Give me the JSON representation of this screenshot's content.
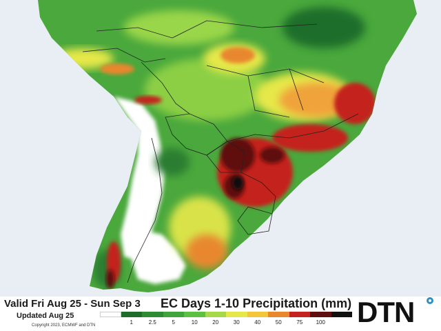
{
  "footer": {
    "valid_text": "Valid Fri Aug 25 - Sun Sep 3",
    "title": "EC Days 1-10 Precipitation (mm)",
    "updated": "Updated Aug 25",
    "copyright": "Copyright 2023, ECMWF and DTN"
  },
  "logo": {
    "text": "DTN"
  },
  "legend": {
    "bins": [
      {
        "label": "",
        "color": "#ffffff"
      },
      {
        "label": "1",
        "color": "#1e6b2a"
      },
      {
        "label": "2.5",
        "color": "#2e8b34"
      },
      {
        "label": "5",
        "color": "#3fa43c"
      },
      {
        "label": "10",
        "color": "#5ec040"
      },
      {
        "label": "20",
        "color": "#a6d94a"
      },
      {
        "label": "30",
        "color": "#e6e84a"
      },
      {
        "label": "40",
        "color": "#f5c63c"
      },
      {
        "label": "50",
        "color": "#e8872e"
      },
      {
        "label": "75",
        "color": "#c4221e"
      },
      {
        "label": "100",
        "color": "#5e0e0e"
      },
      {
        "label": "",
        "color": "#111111"
      }
    ]
  },
  "colors": {
    "ocean": "#e9eef4",
    "dry": "#ffffff",
    "border": "#222222",
    "logo_accent": "#2f8fc4"
  }
}
